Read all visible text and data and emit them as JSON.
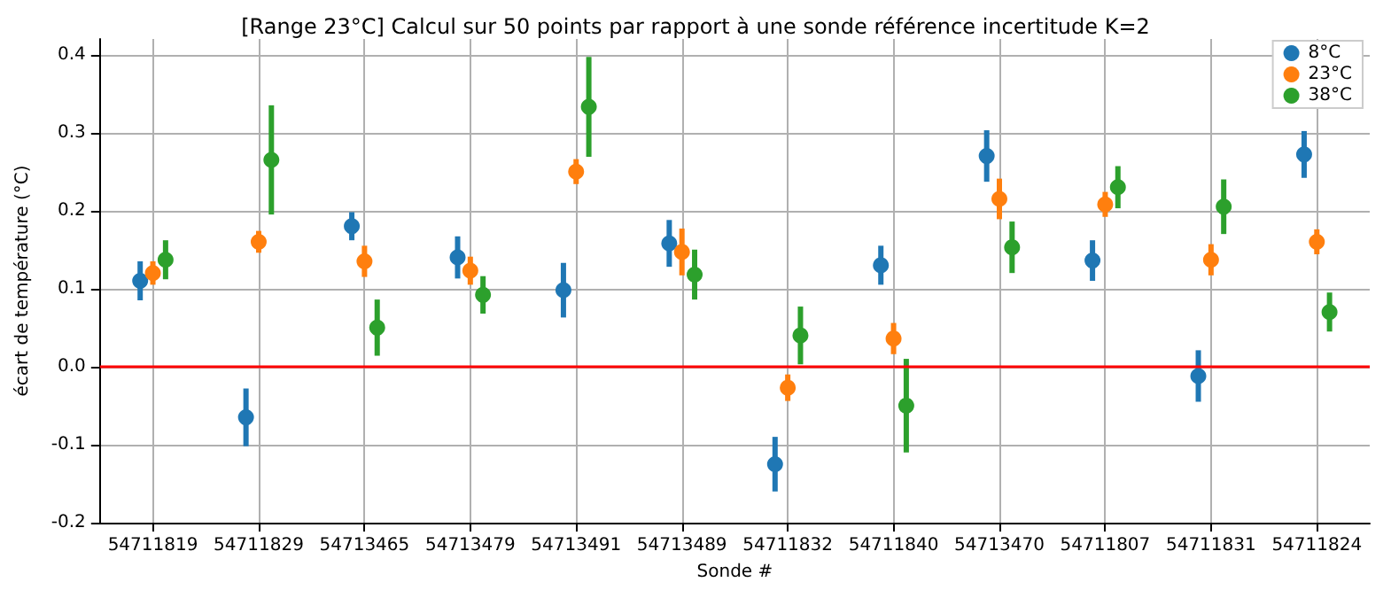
{
  "chart_data": {
    "type": "scatter",
    "title": "[Range 23°C] Calcul sur 50 points par rapport à une sonde référence incertitude K=2",
    "xlabel": "Sonde #",
    "ylabel": "écart de température (°C)",
    "categories": [
      "54711819",
      "54711829",
      "54713465",
      "54713479",
      "54713491",
      "54713489",
      "54711832",
      "54711840",
      "54713470",
      "54711807",
      "54711831",
      "54711824"
    ],
    "series": [
      {
        "name": "8°C",
        "color": "#1f77b4",
        "values": [
          0.11,
          -0.065,
          0.18,
          0.14,
          0.098,
          0.158,
          -0.125,
          0.13,
          0.27,
          0.136,
          -0.012,
          0.272
        ],
        "errors": [
          0.025,
          0.037,
          0.018,
          0.027,
          0.035,
          0.03,
          0.035,
          0.025,
          0.033,
          0.026,
          0.033,
          0.03
        ]
      },
      {
        "name": "23°C",
        "color": "#ff7f0e",
        "values": [
          0.12,
          0.16,
          0.135,
          0.123,
          0.25,
          0.147,
          -0.027,
          0.036,
          0.215,
          0.208,
          0.137,
          0.16
        ],
        "errors": [
          0.015,
          0.014,
          0.02,
          0.018,
          0.016,
          0.03,
          0.017,
          0.02,
          0.026,
          0.016,
          0.02,
          0.016
        ]
      },
      {
        "name": "38°C",
        "color": "#2ca02c",
        "values": [
          0.137,
          0.265,
          0.05,
          0.092,
          0.333,
          0.118,
          0.04,
          -0.05,
          0.153,
          0.23,
          0.205,
          0.07
        ],
        "errors": [
          0.025,
          0.07,
          0.036,
          0.024,
          0.064,
          0.032,
          0.037,
          0.06,
          0.033,
          0.027,
          0.035,
          0.025
        ]
      }
    ],
    "ylim": [
      -0.2,
      0.42
    ],
    "yticks": [
      -0.2,
      -0.1,
      {
        "value": 0,
        "label": "0.0"
      },
      0.1,
      0.2,
      0.3,
      0.4
    ],
    "ref_lines": [
      {
        "axis": "y",
        "value": 0,
        "color": "#ff0000",
        "line_style": "solid"
      }
    ],
    "grid": true,
    "legend": "top right",
    "marker": "circle"
  }
}
